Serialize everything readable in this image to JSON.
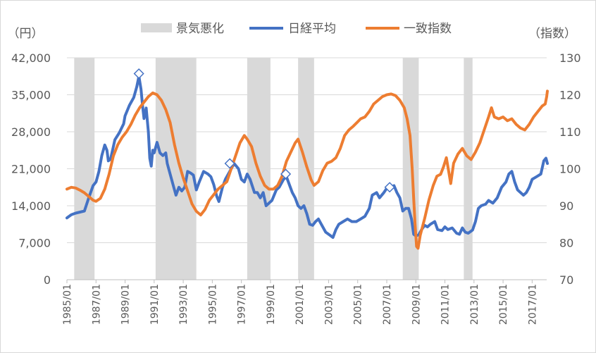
{
  "chart_data": {
    "type": "line",
    "title": "",
    "left_axis_unit": "（円）",
    "right_axis_unit": "（指数）",
    "left_ticks": [
      "0",
      "7,000",
      "14,000",
      "21,000",
      "28,000",
      "35,000",
      "42,000"
    ],
    "left_range": [
      0,
      42000
    ],
    "right_ticks": [
      "70",
      "80",
      "90",
      "100",
      "110",
      "120",
      "130"
    ],
    "right_range": [
      70,
      130
    ],
    "x_range": [
      1985.0,
      2018.0
    ],
    "x_ticks": [
      "1985/01",
      "1987/01",
      "1989/01",
      "1991/01",
      "1993/01",
      "1995/01",
      "1997/01",
      "1999/01",
      "2001/01",
      "2003/01",
      "2005/01",
      "2007/01",
      "2009/01",
      "2011/01",
      "2013/01",
      "2015/01",
      "2017/01"
    ],
    "x_tick_values": [
      1985,
      1987,
      1989,
      1991,
      1993,
      1995,
      1997,
      1999,
      2001,
      2003,
      2005,
      2007,
      2009,
      2011,
      2013,
      2015,
      2017
    ],
    "legend": {
      "recession": "景気悪化",
      "nikkei": "日経平均",
      "coincident": "一致指数"
    },
    "colors": {
      "recession": "#d9d9d9",
      "nikkei": "#4472c4",
      "coincident": "#ed7d31",
      "axis": "#595959",
      "grid": "#d9d9d9"
    },
    "recessions": [
      {
        "start": 1985.5,
        "end": 1986.9
      },
      {
        "start": 1991.1,
        "end": 1993.9
      },
      {
        "start": 1997.4,
        "end": 1999.0
      },
      {
        "start": 2000.9,
        "end": 2002.0
      },
      {
        "start": 2008.1,
        "end": 2009.2
      },
      {
        "start": 2012.3,
        "end": 2012.9
      }
    ],
    "series": [
      {
        "name": "日経平均",
        "axis": "left",
        "points": [
          [
            1985.0,
            11700
          ],
          [
            1985.3,
            12300
          ],
          [
            1985.6,
            12600
          ],
          [
            1985.9,
            12800
          ],
          [
            1986.2,
            13000
          ],
          [
            1986.5,
            15500
          ],
          [
            1986.8,
            17800
          ],
          [
            1987.0,
            18500
          ],
          [
            1987.2,
            20500
          ],
          [
            1987.4,
            23500
          ],
          [
            1987.6,
            25500
          ],
          [
            1987.75,
            24500
          ],
          [
            1987.85,
            22500
          ],
          [
            1988.0,
            22800
          ],
          [
            1988.3,
            26500
          ],
          [
            1988.6,
            27800
          ],
          [
            1988.9,
            29500
          ],
          [
            1989.0,
            31000
          ],
          [
            1989.3,
            33000
          ],
          [
            1989.6,
            34500
          ],
          [
            1989.8,
            36500
          ],
          [
            1989.95,
            38500
          ],
          [
            1990.1,
            36000
          ],
          [
            1990.2,
            33000
          ],
          [
            1990.3,
            30500
          ],
          [
            1990.45,
            32500
          ],
          [
            1990.6,
            28000
          ],
          [
            1990.7,
            23000
          ],
          [
            1990.8,
            21500
          ],
          [
            1990.9,
            24500
          ],
          [
            1991.0,
            24000
          ],
          [
            1991.2,
            26000
          ],
          [
            1991.4,
            24000
          ],
          [
            1991.6,
            23500
          ],
          [
            1991.8,
            24000
          ],
          [
            1991.9,
            22000
          ],
          [
            1992.1,
            20000
          ],
          [
            1992.3,
            18000
          ],
          [
            1992.5,
            16000
          ],
          [
            1992.7,
            17500
          ],
          [
            1992.9,
            16800
          ],
          [
            1993.1,
            17500
          ],
          [
            1993.3,
            20500
          ],
          [
            1993.5,
            20200
          ],
          [
            1993.7,
            19800
          ],
          [
            1993.9,
            17000
          ],
          [
            1994.1,
            18500
          ],
          [
            1994.4,
            20500
          ],
          [
            1994.7,
            20000
          ],
          [
            1994.9,
            19500
          ],
          [
            1995.1,
            18000
          ],
          [
            1995.3,
            15800
          ],
          [
            1995.45,
            14800
          ],
          [
            1995.7,
            17500
          ],
          [
            1995.9,
            19000
          ],
          [
            1996.2,
            20500
          ],
          [
            1996.5,
            22000
          ],
          [
            1996.8,
            21000
          ],
          [
            1997.0,
            19000
          ],
          [
            1997.2,
            18500
          ],
          [
            1997.4,
            20000
          ],
          [
            1997.6,
            19000
          ],
          [
            1997.9,
            16500
          ],
          [
            1998.1,
            16500
          ],
          [
            1998.3,
            15500
          ],
          [
            1998.5,
            16500
          ],
          [
            1998.7,
            14000
          ],
          [
            1998.9,
            14500
          ],
          [
            1999.1,
            15000
          ],
          [
            1999.4,
            17000
          ],
          [
            1999.6,
            17500
          ],
          [
            1999.9,
            19000
          ],
          [
            2000.1,
            19500
          ],
          [
            2000.3,
            18000
          ],
          [
            2000.5,
            16500
          ],
          [
            2000.7,
            15500
          ],
          [
            2000.9,
            14000
          ],
          [
            2001.1,
            13500
          ],
          [
            2001.3,
            14000
          ],
          [
            2001.5,
            12500
          ],
          [
            2001.7,
            10500
          ],
          [
            2001.9,
            10300
          ],
          [
            2002.1,
            11000
          ],
          [
            2002.3,
            11500
          ],
          [
            2002.5,
            10500
          ],
          [
            2002.8,
            9000
          ],
          [
            2003.0,
            8600
          ],
          [
            2003.3,
            8000
          ],
          [
            2003.5,
            9500
          ],
          [
            2003.7,
            10500
          ],
          [
            2004.0,
            11000
          ],
          [
            2004.3,
            11500
          ],
          [
            2004.6,
            11000
          ],
          [
            2004.9,
            11000
          ],
          [
            2005.2,
            11500
          ],
          [
            2005.5,
            12000
          ],
          [
            2005.8,
            13500
          ],
          [
            2006.0,
            16000
          ],
          [
            2006.3,
            16500
          ],
          [
            2006.5,
            15500
          ],
          [
            2006.8,
            16500
          ],
          [
            2007.0,
            17300
          ],
          [
            2007.3,
            17500
          ],
          [
            2007.5,
            17800
          ],
          [
            2007.7,
            16500
          ],
          [
            2007.9,
            15500
          ],
          [
            2008.1,
            13000
          ],
          [
            2008.3,
            13500
          ],
          [
            2008.5,
            13500
          ],
          [
            2008.7,
            11500
          ],
          [
            2008.85,
            8600
          ],
          [
            2009.0,
            8300
          ],
          [
            2009.2,
            8500
          ],
          [
            2009.4,
            9500
          ],
          [
            2009.6,
            10300
          ],
          [
            2009.8,
            10000
          ],
          [
            2010.0,
            10500
          ],
          [
            2010.3,
            11000
          ],
          [
            2010.5,
            9500
          ],
          [
            2010.8,
            9300
          ],
          [
            2011.0,
            10000
          ],
          [
            2011.2,
            9500
          ],
          [
            2011.5,
            9800
          ],
          [
            2011.8,
            8800
          ],
          [
            2012.0,
            8600
          ],
          [
            2012.2,
            9800
          ],
          [
            2012.4,
            9000
          ],
          [
            2012.6,
            8800
          ],
          [
            2012.9,
            9400
          ],
          [
            2013.1,
            11000
          ],
          [
            2013.3,
            13500
          ],
          [
            2013.5,
            14000
          ],
          [
            2013.8,
            14300
          ],
          [
            2014.0,
            15000
          ],
          [
            2014.3,
            14500
          ],
          [
            2014.6,
            15500
          ],
          [
            2014.9,
            17500
          ],
          [
            2015.2,
            18500
          ],
          [
            2015.4,
            20000
          ],
          [
            2015.6,
            20500
          ],
          [
            2015.8,
            18500
          ],
          [
            2016.0,
            17000
          ],
          [
            2016.2,
            16500
          ],
          [
            2016.4,
            16000
          ],
          [
            2016.6,
            16500
          ],
          [
            2016.8,
            17500
          ],
          [
            2017.0,
            19000
          ],
          [
            2017.3,
            19500
          ],
          [
            2017.6,
            20000
          ],
          [
            2017.8,
            22500
          ],
          [
            2017.95,
            23000
          ],
          [
            2018.05,
            22000
          ]
        ],
        "markers": [
          [
            1989.95,
            39000
          ],
          [
            1996.2,
            22000
          ],
          [
            2000.05,
            20000
          ],
          [
            2007.2,
            17500
          ]
        ]
      },
      {
        "name": "一致指数",
        "axis": "right",
        "points": [
          [
            1985.0,
            94.5
          ],
          [
            1985.3,
            95.0
          ],
          [
            1985.6,
            94.8
          ],
          [
            1985.9,
            94.2
          ],
          [
            1986.2,
            93.5
          ],
          [
            1986.5,
            92.5
          ],
          [
            1986.8,
            91.5
          ],
          [
            1987.0,
            91.2
          ],
          [
            1987.3,
            92.0
          ],
          [
            1987.6,
            94.5
          ],
          [
            1987.9,
            98.5
          ],
          [
            1988.2,
            103.5
          ],
          [
            1988.5,
            106.5
          ],
          [
            1988.8,
            108.5
          ],
          [
            1989.1,
            110.0
          ],
          [
            1989.4,
            112.0
          ],
          [
            1989.7,
            114.5
          ],
          [
            1990.0,
            116.5
          ],
          [
            1990.3,
            118.0
          ],
          [
            1990.6,
            119.5
          ],
          [
            1990.9,
            120.5
          ],
          [
            1991.2,
            120.0
          ],
          [
            1991.5,
            118.5
          ],
          [
            1991.8,
            116.0
          ],
          [
            1992.1,
            112.5
          ],
          [
            1992.4,
            106.5
          ],
          [
            1992.7,
            101.5
          ],
          [
            1993.0,
            97.5
          ],
          [
            1993.3,
            94.0
          ],
          [
            1993.6,
            90.5
          ],
          [
            1993.9,
            88.5
          ],
          [
            1994.2,
            87.5
          ],
          [
            1994.5,
            89.0
          ],
          [
            1994.8,
            91.5
          ],
          [
            1995.1,
            93.0
          ],
          [
            1995.4,
            94.5
          ],
          [
            1995.7,
            95.5
          ],
          [
            1996.0,
            96.5
          ],
          [
            1996.3,
            100.0
          ],
          [
            1996.6,
            103.5
          ],
          [
            1996.9,
            107.0
          ],
          [
            1997.2,
            109.0
          ],
          [
            1997.4,
            108.0
          ],
          [
            1997.7,
            106.0
          ],
          [
            1998.0,
            101.5
          ],
          [
            1998.3,
            98.0
          ],
          [
            1998.6,
            95.5
          ],
          [
            1998.9,
            94.5
          ],
          [
            1999.2,
            94.5
          ],
          [
            1999.5,
            95.5
          ],
          [
            1999.8,
            98.0
          ],
          [
            2000.1,
            102.0
          ],
          [
            2000.4,
            104.5
          ],
          [
            2000.7,
            107.0
          ],
          [
            2000.9,
            108.0
          ],
          [
            2001.2,
            104.5
          ],
          [
            2001.5,
            100.5
          ],
          [
            2001.8,
            97.0
          ],
          [
            2002.0,
            95.5
          ],
          [
            2002.3,
            96.5
          ],
          [
            2002.6,
            99.5
          ],
          [
            2002.9,
            101.5
          ],
          [
            2003.2,
            102.0
          ],
          [
            2003.5,
            103.0
          ],
          [
            2003.8,
            105.5
          ],
          [
            2004.1,
            109.0
          ],
          [
            2004.4,
            110.5
          ],
          [
            2004.7,
            111.5
          ],
          [
            2004.95,
            112.5
          ],
          [
            2005.2,
            113.5
          ],
          [
            2005.5,
            114.0
          ],
          [
            2005.8,
            115.5
          ],
          [
            2006.1,
            117.5
          ],
          [
            2006.4,
            118.5
          ],
          [
            2006.7,
            119.5
          ],
          [
            2007.0,
            120.0
          ],
          [
            2007.3,
            120.2
          ],
          [
            2007.6,
            119.8
          ],
          [
            2007.9,
            118.5
          ],
          [
            2008.2,
            116.5
          ],
          [
            2008.4,
            113.5
          ],
          [
            2008.6,
            109.0
          ],
          [
            2008.75,
            100.0
          ],
          [
            2008.85,
            92.0
          ],
          [
            2008.95,
            85.0
          ],
          [
            2009.05,
            79.0
          ],
          [
            2009.15,
            78.5
          ],
          [
            2009.3,
            82.0
          ],
          [
            2009.6,
            86.5
          ],
          [
            2009.9,
            91.5
          ],
          [
            2010.2,
            95.5
          ],
          [
            2010.45,
            98.0
          ],
          [
            2010.7,
            98.5
          ],
          [
            2010.9,
            100.5
          ],
          [
            2011.1,
            103.0
          ],
          [
            2011.25,
            99.5
          ],
          [
            2011.4,
            96.0
          ],
          [
            2011.6,
            101.5
          ],
          [
            2011.9,
            104.0
          ],
          [
            2012.2,
            105.5
          ],
          [
            2012.5,
            103.5
          ],
          [
            2012.8,
            102.5
          ],
          [
            2013.1,
            104.5
          ],
          [
            2013.4,
            107.0
          ],
          [
            2013.7,
            110.5
          ],
          [
            2014.0,
            114.0
          ],
          [
            2014.2,
            116.5
          ],
          [
            2014.4,
            114.0
          ],
          [
            2014.7,
            113.5
          ],
          [
            2015.0,
            114.0
          ],
          [
            2015.3,
            113.0
          ],
          [
            2015.6,
            113.5
          ],
          [
            2015.9,
            112.0
          ],
          [
            2016.2,
            111.0
          ],
          [
            2016.5,
            110.5
          ],
          [
            2016.8,
            112.0
          ],
          [
            2017.1,
            114.0
          ],
          [
            2017.4,
            115.5
          ],
          [
            2017.7,
            117.0
          ],
          [
            2017.9,
            117.5
          ],
          [
            2018.0,
            119.5
          ],
          [
            2018.05,
            121.0
          ]
        ]
      }
    ]
  }
}
